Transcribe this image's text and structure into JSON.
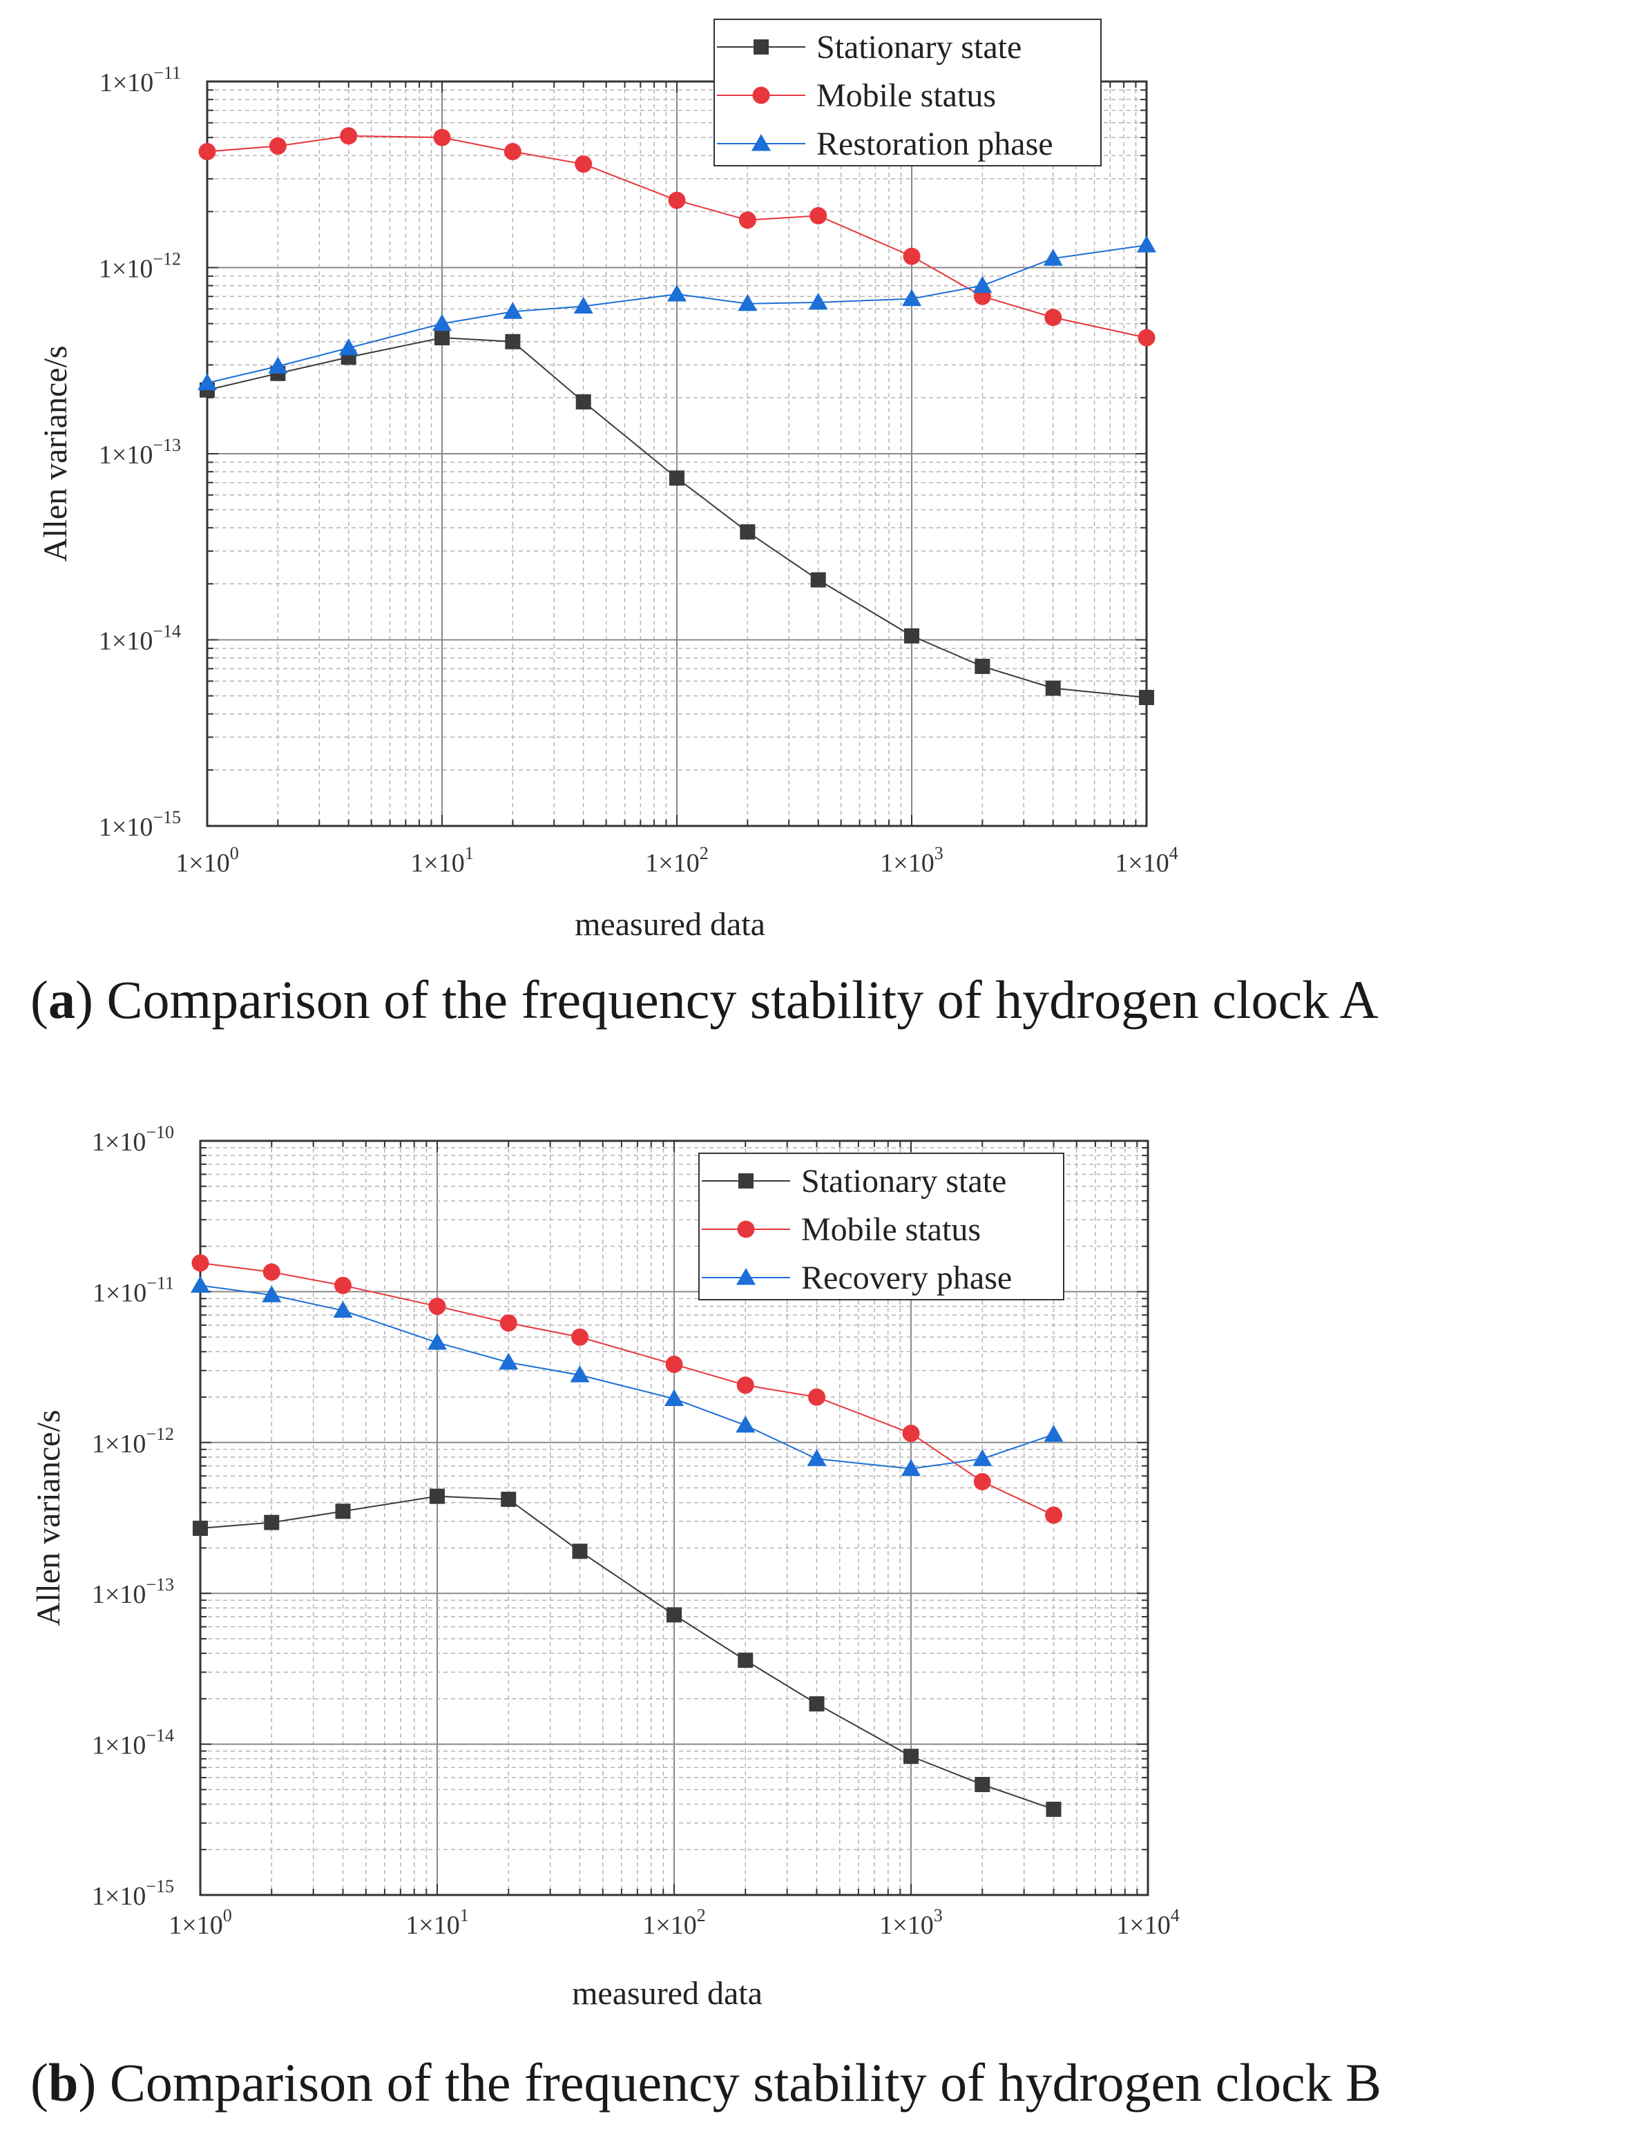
{
  "chart_data": [
    {
      "panel": "a",
      "type": "line",
      "x_scale": "log",
      "y_scale": "log",
      "xlabel": "measured data",
      "ylabel": "Allen variance/s",
      "xlim": [
        1,
        10000
      ],
      "ylim": [
        1e-15,
        1e-11
      ],
      "x_tick_labels": [
        {
          "value": 1,
          "base": "1×10",
          "exp": "0"
        },
        {
          "value": 10,
          "base": "1×10",
          "exp": "1"
        },
        {
          "value": 100,
          "base": "1×10",
          "exp": "2"
        },
        {
          "value": 1000,
          "base": "1×10",
          "exp": "3"
        },
        {
          "value": 10000,
          "base": "1×10",
          "exp": "4"
        }
      ],
      "y_tick_labels": [
        {
          "value": 1e-11,
          "base": "1×10",
          "exp": "−11"
        },
        {
          "value": 1e-12,
          "base": "1×10",
          "exp": "−12"
        },
        {
          "value": 1e-13,
          "base": "1×10",
          "exp": "−13"
        },
        {
          "value": 1e-14,
          "base": "1×10",
          "exp": "−14"
        },
        {
          "value": 1e-15,
          "base": "1×10",
          "exp": "−15"
        }
      ],
      "grid": true,
      "legend_position": "top-right",
      "x": [
        1,
        2,
        4,
        10,
        20,
        40,
        100,
        200,
        400,
        1000,
        2000,
        4000,
        10000
      ],
      "series": [
        {
          "name": "Stationary state",
          "marker": "square",
          "color": "#3a3a3a",
          "values": [
            2.2e-13,
            2.7e-13,
            3.3e-13,
            4.2e-13,
            4e-13,
            1.9e-13,
            7.4e-14,
            3.8e-14,
            2.1e-14,
            1.05e-14,
            7.2e-15,
            5.5e-15,
            4.9e-15
          ]
        },
        {
          "name": "Mobile status",
          "marker": "circle",
          "color": "#e8363d",
          "values": [
            4.2e-12,
            4.5e-12,
            5.1e-12,
            5e-12,
            4.2e-12,
            3.6e-12,
            2.3e-12,
            1.8e-12,
            1.9e-12,
            1.15e-12,
            7e-13,
            5.4e-13,
            4.2e-13
          ]
        },
        {
          "name": "Restoration phase",
          "marker": "triangle",
          "color": "#1c6fd6",
          "values": [
            2.4e-13,
            2.95e-13,
            3.7e-13,
            5e-13,
            5.8e-13,
            6.2e-13,
            7.2e-13,
            6.4e-13,
            6.5e-13,
            6.8e-13,
            8e-13,
            1.12e-12,
            1.32e-12
          ]
        }
      ]
    },
    {
      "panel": "b",
      "type": "line",
      "x_scale": "log",
      "y_scale": "log",
      "xlabel": "measured data",
      "ylabel": "Allen variance/s",
      "xlim": [
        1,
        10000
      ],
      "ylim": [
        1e-15,
        1e-10
      ],
      "x_tick_labels": [
        {
          "value": 1,
          "base": "1×10",
          "exp": "0"
        },
        {
          "value": 10,
          "base": "1×10",
          "exp": "1"
        },
        {
          "value": 100,
          "base": "1×10",
          "exp": "2"
        },
        {
          "value": 1000,
          "base": "1×10",
          "exp": "3"
        },
        {
          "value": 10000,
          "base": "1×10",
          "exp": "4"
        }
      ],
      "y_tick_labels": [
        {
          "value": 1e-10,
          "base": "1×10",
          "exp": "−10"
        },
        {
          "value": 1e-11,
          "base": "1×10",
          "exp": "−11"
        },
        {
          "value": 1e-12,
          "base": "1×10",
          "exp": "−12"
        },
        {
          "value": 1e-13,
          "base": "1×10",
          "exp": "−13"
        },
        {
          "value": 1e-14,
          "base": "1×10",
          "exp": "−14"
        },
        {
          "value": 1e-15,
          "base": "1×10",
          "exp": "−15"
        }
      ],
      "grid": true,
      "legend_position": "top-right",
      "x": [
        1,
        2,
        4,
        10,
        20,
        40,
        100,
        200,
        400,
        1000,
        2000,
        4000
      ],
      "series": [
        {
          "name": "Stationary state",
          "marker": "square",
          "color": "#3a3a3a",
          "values": [
            2.7e-13,
            2.95e-13,
            3.5e-13,
            4.4e-13,
            4.2e-13,
            1.9e-13,
            7.2e-14,
            3.6e-14,
            1.85e-14,
            8.3e-15,
            5.4e-15,
            3.7e-15
          ]
        },
        {
          "name": "Mobile status",
          "marker": "circle",
          "color": "#e8363d",
          "values": [
            1.55e-11,
            1.35e-11,
            1.1e-11,
            8e-12,
            6.2e-12,
            5e-12,
            3.3e-12,
            2.4e-12,
            2e-12,
            1.15e-12,
            5.5e-13,
            3.3e-13
          ]
        },
        {
          "name": "Recovery phase",
          "marker": "triangle",
          "color": "#1c6fd6",
          "values": [
            1.1e-11,
            9.5e-12,
            7.5e-12,
            4.6e-12,
            3.4e-12,
            2.8e-12,
            1.95e-12,
            1.3e-12,
            7.8e-13,
            6.7e-13,
            7.8e-13,
            1.13e-12
          ]
        }
      ]
    }
  ],
  "captions": {
    "a_label": "a",
    "a_text": "Comparison of the frequency stability of hydrogen clock A",
    "b_label": "b",
    "b_text": "Comparison of the frequency stability of hydrogen clock B"
  }
}
